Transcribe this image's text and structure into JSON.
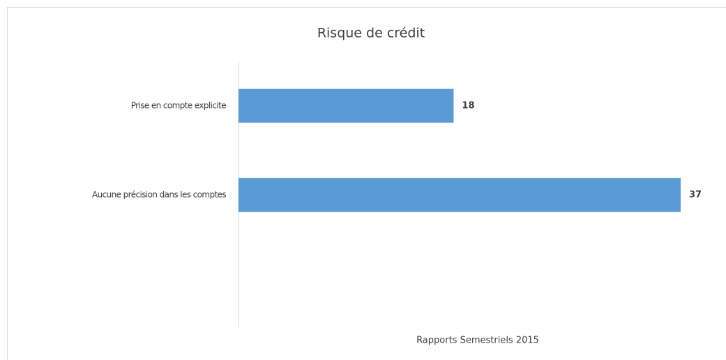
{
  "chart_data": {
    "type": "bar",
    "orientation": "horizontal",
    "title": "Risque de crédit",
    "categories": [
      "Prise en compte explicite",
      "Aucune précision dans les comptes",
      null
    ],
    "values": [
      18,
      37,
      null
    ],
    "color": "#5b9bd5",
    "xlim": [
      0,
      37
    ],
    "xlabel": "Rapports Semestriels 2015"
  }
}
